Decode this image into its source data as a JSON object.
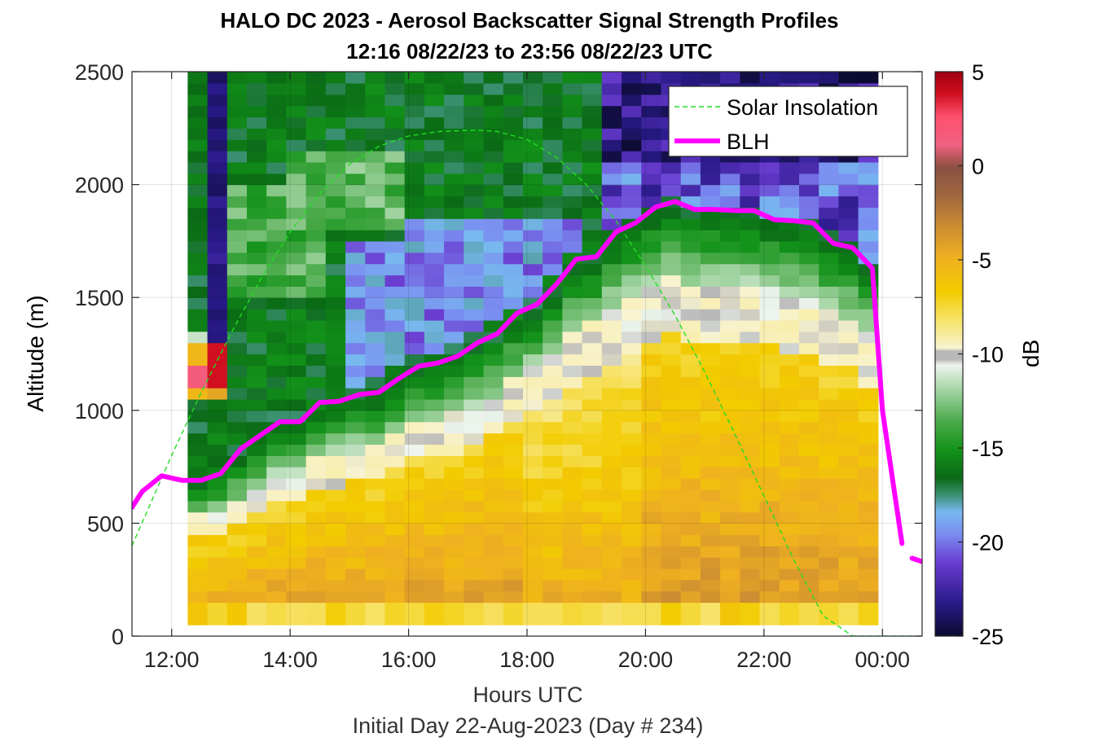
{
  "chart_data": {
    "type": "heatmap",
    "title": "HALO DC 2023 - Aerosol Backscatter Signal Strength Profiles",
    "subtitle": "12:16 08/22/23 to 23:56 08/22/23  UTC",
    "xlabel": "Hours UTC",
    "xlabel_sub": "Initial Day 22-Aug-2023 (Day # 234)",
    "ylabel": "Altitude (m)",
    "colorbar_label": "dB",
    "xlim": [
      11.33,
      24.67
    ],
    "ylim": [
      0,
      2500
    ],
    "x_ticks": [
      12,
      14,
      16,
      18,
      20,
      22,
      24
    ],
    "x_tick_labels": [
      "12:00",
      "14:00",
      "16:00",
      "18:00",
      "20:00",
      "22:00",
      "00:00"
    ],
    "y_ticks": [
      0,
      500,
      1000,
      1500,
      2000,
      2500
    ],
    "y_tick_labels": [
      "0",
      "500",
      "1000",
      "1500",
      "2000",
      "2500"
    ],
    "colorbar_ticks": [
      5,
      0,
      -5,
      -10,
      -15,
      -20,
      -25
    ],
    "colorbar_tick_labels": [
      "5",
      "0",
      "-5",
      "-10",
      "-15",
      "-20",
      "-25"
    ],
    "clim": [
      -25,
      5
    ],
    "grid": true,
    "legend_position": "top-right",
    "grid_data": {
      "x_start": 12.27,
      "x_step": 0.333,
      "y_start": 100,
      "y_step": 50,
      "columns": 35,
      "rows": 48
    },
    "series": [
      {
        "name": "Solar Insolation",
        "style": "dashed-green",
        "x": [
          11.33,
          12.0,
          12.5,
          13.0,
          13.5,
          14.0,
          14.5,
          15.0,
          15.5,
          16.0,
          16.5,
          17.0,
          17.25,
          17.5,
          18.0,
          18.5,
          19.0,
          19.5,
          20.0,
          20.5,
          21.0,
          21.5,
          22.0,
          22.5,
          23.0,
          23.5,
          23.8,
          24.67
        ],
        "y": [
          400,
          800,
          1080,
          1340,
          1580,
          1790,
          1960,
          2090,
          2170,
          2215,
          2235,
          2240,
          2240,
          2235,
          2200,
          2120,
          2000,
          1840,
          1640,
          1420,
          1170,
          900,
          620,
          340,
          90,
          0,
          0,
          0
        ]
      },
      {
        "name": "BLH",
        "style": "solid-magenta",
        "x": [
          11.33,
          11.5,
          11.83,
          12.17,
          12.5,
          12.83,
          13.17,
          13.5,
          13.83,
          14.17,
          14.5,
          14.83,
          15.17,
          15.5,
          15.83,
          16.17,
          16.5,
          16.83,
          17.17,
          17.5,
          17.83,
          18.17,
          18.5,
          18.83,
          19.17,
          19.5,
          19.83,
          20.17,
          20.5,
          20.83,
          21.17,
          21.5,
          21.83,
          22.17,
          22.5,
          22.83,
          23.17,
          23.5,
          23.83,
          24.0,
          24.33,
          null,
          24.67,
          24.5
        ],
        "y": [
          570,
          640,
          710,
          690,
          690,
          720,
          830,
          890,
          950,
          950,
          1035,
          1040,
          1070,
          1080,
          1140,
          1195,
          1210,
          1240,
          1300,
          1340,
          1430,
          1470,
          1560,
          1670,
          1680,
          1790,
          1830,
          1900,
          1925,
          1890,
          1890,
          1885,
          1885,
          1845,
          1840,
          1830,
          1740,
          1720,
          1630,
          1000,
          410,
          null,
          330,
          345
        ]
      }
    ]
  }
}
